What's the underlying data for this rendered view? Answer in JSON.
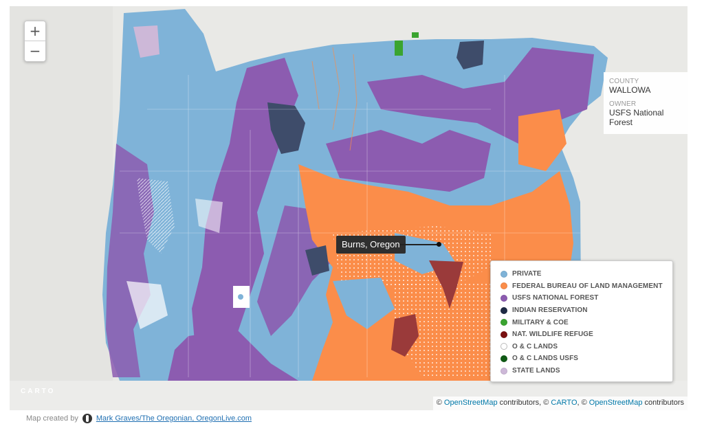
{
  "zoom": {
    "in_label": "+",
    "out_label": "−"
  },
  "info": {
    "county_label": "COUNTY",
    "county_value": "WALLOWA",
    "owner_label": "OWNER",
    "owner_value": "USFS National Forest"
  },
  "tooltip": {
    "label": "Burns, Oregon"
  },
  "legend": {
    "items": [
      {
        "label": "PRIVATE",
        "color": "#7fb3d8"
      },
      {
        "label": "FEDERAL BUREAU OF LAND MANAGEMENT",
        "color": "#fb8d4a"
      },
      {
        "label": "USFS NATIONAL FOREST",
        "color": "#8c5cb0"
      },
      {
        "label": "INDIAN RESERVATION",
        "color": "#1e2a44"
      },
      {
        "label": "MILITARY & COE",
        "color": "#3aa430"
      },
      {
        "label": "NAT. WILDLIFE REFUGE",
        "color": "#7a1010"
      },
      {
        "label": "O & C LANDS",
        "color": "#ffffff"
      },
      {
        "label": "O & C LANDS USFS",
        "color": "#0f5a14"
      },
      {
        "label": "STATE LANDS",
        "color": "#cdb8d8"
      }
    ]
  },
  "carto_logo": "CARTO",
  "attribution": {
    "prefix": "©",
    "osm1": "OpenStreetMap",
    "mid1": "contributors, ©",
    "carto": "CARTO",
    "mid2": ", ©",
    "osm2": "OpenStreetMap",
    "suffix": "contributors"
  },
  "credit": {
    "prefix": "Map created by",
    "link": "Mark Graves/The Oregonian, OregonLive.com"
  }
}
